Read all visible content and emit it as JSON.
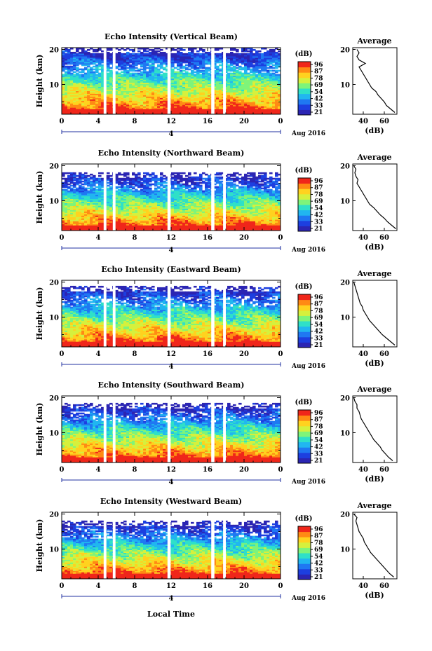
{
  "figure": {
    "x_axis_label": "Local Time",
    "date_label": "Aug 2016",
    "date_day": "4",
    "avg_title": "Average",
    "avg_unit": "(dB)",
    "y_axis_label": "Height (km)"
  },
  "colorbar": {
    "unit": "(dB)",
    "ticks": [
      "96",
      "87",
      "78",
      "69",
      "54",
      "42",
      "33",
      "21"
    ],
    "colors": [
      "#2b25b3",
      "#1d3fe0",
      "#1f78f2",
      "#21b6f0",
      "#2fe0c8",
      "#7ef47a",
      "#d6f03d",
      "#ffd21f",
      "#ff8a14",
      "#f0261a"
    ]
  },
  "chart_data": [
    {
      "type": "heatmap",
      "title": "Echo Intensity (Vertical Beam)",
      "xlabel": "",
      "ylabel": "Height (km)",
      "x_ticks": [
        "0",
        "4",
        "8",
        "12",
        "16",
        "20",
        "0"
      ],
      "y_ticks": [
        "20",
        "10"
      ],
      "xlim": [
        0,
        24
      ],
      "ylim": [
        1.5,
        20.5
      ],
      "data_gaps_hours": [
        [
          4.6,
          4.9
        ],
        [
          5.6,
          5.9
        ],
        [
          11.6,
          11.95
        ],
        [
          16.4,
          16.75
        ],
        [
          17.7,
          18.0
        ]
      ],
      "echo_top_km": 20.5,
      "average_profile": {
        "title": "Average",
        "xlabel": "(dB)",
        "x_ticks": [
          "40",
          "60"
        ],
        "y_ticks": [
          "20",
          "10"
        ],
        "xlim": [
          30,
          72
        ],
        "height_km": [
          2,
          3,
          4,
          5,
          6,
          7,
          8,
          9,
          10,
          11,
          12,
          13,
          14,
          15,
          16,
          17,
          18,
          19,
          20
        ],
        "power_db": [
          70,
          66,
          62,
          60,
          57,
          54,
          52,
          48,
          46,
          44,
          42,
          40,
          38,
          36,
          42,
          36,
          34,
          36,
          34
        ]
      }
    },
    {
      "type": "heatmap",
      "title": "Echo Intensity (Northward Beam)",
      "xlabel": "",
      "ylabel": "Height (km)",
      "x_ticks": [
        "0",
        "4",
        "8",
        "12",
        "16",
        "20",
        "0"
      ],
      "y_ticks": [
        "20",
        "10"
      ],
      "xlim": [
        0,
        24
      ],
      "ylim": [
        1.5,
        20.5
      ],
      "data_gaps_hours": [
        [
          4.6,
          4.9
        ],
        [
          5.6,
          5.9
        ],
        [
          11.6,
          11.95
        ],
        [
          16.4,
          16.75
        ],
        [
          17.7,
          18.0
        ]
      ],
      "echo_top_km": 18.2,
      "average_profile": {
        "title": "Average",
        "xlabel": "(dB)",
        "x_ticks": [
          "40",
          "60"
        ],
        "y_ticks": [
          "20",
          "10"
        ],
        "xlim": [
          30,
          72
        ],
        "height_km": [
          2,
          3,
          4,
          5,
          6,
          7,
          8,
          9,
          10,
          11,
          12,
          13,
          14,
          15,
          16,
          17,
          18,
          19,
          20
        ],
        "power_db": [
          71,
          67,
          63,
          60,
          56,
          53,
          50,
          46,
          44,
          42,
          40,
          38,
          36,
          34,
          35,
          33,
          32,
          33,
          31
        ]
      }
    },
    {
      "type": "heatmap",
      "title": "Echo Intensity (Eastward Beam)",
      "xlabel": "",
      "ylabel": "Height (km)",
      "x_ticks": [
        "0",
        "4",
        "8",
        "12",
        "16",
        "20",
        "0"
      ],
      "y_ticks": [
        "20",
        "10"
      ],
      "xlim": [
        0,
        24
      ],
      "ylim": [
        1.5,
        20.5
      ],
      "data_gaps_hours": [
        [
          4.6,
          4.9
        ],
        [
          5.6,
          5.9
        ],
        [
          11.6,
          11.95
        ],
        [
          16.4,
          16.75
        ],
        [
          17.7,
          18.0
        ]
      ],
      "echo_top_km": 19.0,
      "average_profile": {
        "title": "Average",
        "xlabel": "(dB)",
        "x_ticks": [
          "40",
          "60"
        ],
        "y_ticks": [
          "20",
          "10"
        ],
        "xlim": [
          30,
          72
        ],
        "height_km": [
          2,
          3,
          4,
          5,
          6,
          7,
          8,
          9,
          10,
          11,
          12,
          13,
          14,
          15,
          16,
          17,
          18,
          19,
          20
        ],
        "power_db": [
          70,
          66,
          62,
          58,
          55,
          52,
          49,
          46,
          44,
          42,
          40,
          39,
          37,
          36,
          35,
          34,
          33,
          32,
          31
        ]
      }
    },
    {
      "type": "heatmap",
      "title": "Echo Intensity (Southward Beam)",
      "xlabel": "",
      "ylabel": "Height (km)",
      "x_ticks": [
        "0",
        "4",
        "8",
        "12",
        "16",
        "20",
        "0"
      ],
      "y_ticks": [
        "20",
        "10"
      ],
      "xlim": [
        0,
        24
      ],
      "ylim": [
        1.5,
        20.5
      ],
      "data_gaps_hours": [
        [
          4.6,
          4.9
        ],
        [
          5.6,
          5.9
        ],
        [
          11.6,
          11.95
        ],
        [
          16.4,
          16.75
        ],
        [
          17.7,
          18.0
        ]
      ],
      "echo_top_km": 18.5,
      "average_profile": {
        "title": "Average",
        "xlabel": "(dB)",
        "x_ticks": [
          "40",
          "60"
        ],
        "y_ticks": [
          "20",
          "10"
        ],
        "xlim": [
          30,
          72
        ],
        "height_km": [
          2,
          3,
          4,
          5,
          6,
          7,
          8,
          9,
          10,
          11,
          12,
          13,
          14,
          15,
          16,
          17,
          18,
          19,
          20
        ],
        "power_db": [
          68,
          64,
          61,
          58,
          56,
          53,
          50,
          48,
          46,
          44,
          42,
          40,
          38,
          37,
          36,
          34,
          34,
          32,
          31
        ]
      }
    },
    {
      "type": "heatmap",
      "title": "Echo Intensity (Westward Beam)",
      "xlabel": "Local Time",
      "ylabel": "Height (km)",
      "x_ticks": [
        "0",
        "4",
        "8",
        "12",
        "16",
        "20",
        "0"
      ],
      "y_ticks": [
        "20",
        "10"
      ],
      "xlim": [
        0,
        24
      ],
      "ylim": [
        1.5,
        20.5
      ],
      "data_gaps_hours": [
        [
          4.6,
          4.9
        ],
        [
          5.6,
          5.9
        ],
        [
          11.6,
          11.95
        ],
        [
          16.4,
          16.75
        ],
        [
          17.7,
          18.0
        ]
      ],
      "echo_top_km": 18.0,
      "average_profile": {
        "title": "Average",
        "xlabel": "(dB)",
        "x_ticks": [
          "40",
          "60"
        ],
        "y_ticks": [
          "20",
          "10"
        ],
        "xlim": [
          30,
          72
        ],
        "height_km": [
          2,
          3,
          4,
          5,
          6,
          7,
          8,
          9,
          10,
          11,
          12,
          13,
          14,
          15,
          16,
          17,
          18,
          19,
          20
        ],
        "power_db": [
          69,
          65,
          62,
          59,
          56,
          53,
          50,
          47,
          45,
          43,
          41,
          40,
          38,
          36,
          35,
          34,
          33,
          34,
          31
        ]
      }
    }
  ]
}
